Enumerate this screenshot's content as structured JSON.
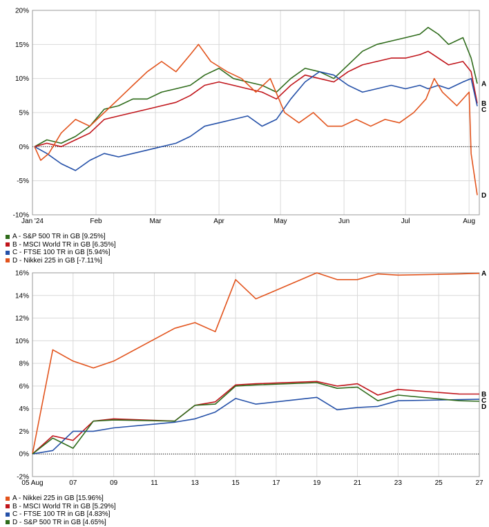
{
  "chart_data": [
    {
      "type": "line",
      "y_unit": "%",
      "ylim": [
        -10,
        20
      ],
      "y_ticks": [
        -10,
        -5,
        0,
        5,
        10,
        15,
        20
      ],
      "y_tick_labels": [
        "-10%",
        "-5%",
        "0%",
        "5%",
        "10%",
        "15%",
        "20%"
      ],
      "x_ticks": [
        "Jan '24",
        "Feb",
        "Mar",
        "Apr",
        "May",
        "Jun",
        "Jul",
        "Aug"
      ],
      "x_tick_positions": [
        "2024-01-01",
        "2024-02-01",
        "2024-03-01",
        "2024-04-01",
        "2024-05-01",
        "2024-06-01",
        "2024-07-01",
        "2024-08-01"
      ],
      "x_range": [
        "2024-01-01",
        "2024-08-06"
      ],
      "grid": true,
      "legend_position": "bottom-left",
      "series": [
        {
          "name": "A - S&P 500 TR in GB [9.25%]",
          "end_label": "A",
          "color": "#2e6b1a",
          "x": [
            "2024-01-02",
            "2024-01-08",
            "2024-01-15",
            "2024-01-22",
            "2024-01-29",
            "2024-02-05",
            "2024-02-12",
            "2024-02-19",
            "2024-02-26",
            "2024-03-04",
            "2024-03-11",
            "2024-03-18",
            "2024-03-25",
            "2024-04-01",
            "2024-04-08",
            "2024-04-15",
            "2024-04-22",
            "2024-04-29",
            "2024-05-06",
            "2024-05-13",
            "2024-05-20",
            "2024-05-27",
            "2024-06-03",
            "2024-06-10",
            "2024-06-17",
            "2024-06-24",
            "2024-07-01",
            "2024-07-08",
            "2024-07-12",
            "2024-07-17",
            "2024-07-22",
            "2024-07-29",
            "2024-08-02",
            "2024-08-05"
          ],
          "y": [
            0,
            1,
            0.5,
            1.5,
            3,
            5.5,
            6,
            7,
            7,
            8,
            8.5,
            9,
            10.5,
            11.5,
            10,
            9.5,
            9,
            8,
            10,
            11.5,
            11,
            10,
            12,
            14,
            15,
            15.5,
            16,
            16.5,
            17.5,
            16.5,
            15,
            16,
            13,
            9.25
          ]
        },
        {
          "name": "B - MSCI World TR in GB [6.35%]",
          "end_label": "B",
          "color": "#c0141a",
          "x": [
            "2024-01-02",
            "2024-01-08",
            "2024-01-15",
            "2024-01-22",
            "2024-01-29",
            "2024-02-05",
            "2024-02-12",
            "2024-02-19",
            "2024-02-26",
            "2024-03-04",
            "2024-03-11",
            "2024-03-18",
            "2024-03-25",
            "2024-04-01",
            "2024-04-08",
            "2024-04-15",
            "2024-04-22",
            "2024-04-29",
            "2024-05-06",
            "2024-05-13",
            "2024-05-20",
            "2024-05-27",
            "2024-06-03",
            "2024-06-10",
            "2024-06-17",
            "2024-06-24",
            "2024-07-01",
            "2024-07-08",
            "2024-07-12",
            "2024-07-17",
            "2024-07-22",
            "2024-07-29",
            "2024-08-02",
            "2024-08-05"
          ],
          "y": [
            0,
            0.5,
            0,
            1,
            2,
            4,
            4.5,
            5,
            5.5,
            6,
            6.5,
            7.5,
            9,
            9.5,
            9,
            8.5,
            8,
            7,
            9,
            10.5,
            10,
            9.5,
            11,
            12,
            12.5,
            13,
            13,
            13.5,
            14,
            13,
            12,
            12.5,
            11,
            6.35
          ]
        },
        {
          "name": "C - FTSE 100 TR in GB [5.94%]",
          "end_label": "C",
          "color": "#2450a8",
          "x": [
            "2024-01-02",
            "2024-01-08",
            "2024-01-15",
            "2024-01-22",
            "2024-01-29",
            "2024-02-05",
            "2024-02-12",
            "2024-02-19",
            "2024-02-26",
            "2024-03-04",
            "2024-03-11",
            "2024-03-18",
            "2024-03-25",
            "2024-04-01",
            "2024-04-08",
            "2024-04-15",
            "2024-04-22",
            "2024-04-29",
            "2024-05-06",
            "2024-05-13",
            "2024-05-20",
            "2024-05-27",
            "2024-06-03",
            "2024-06-10",
            "2024-06-17",
            "2024-06-24",
            "2024-07-01",
            "2024-07-08",
            "2024-07-12",
            "2024-07-17",
            "2024-07-22",
            "2024-07-29",
            "2024-08-02",
            "2024-08-05"
          ],
          "y": [
            0,
            -1,
            -2.5,
            -3.5,
            -2,
            -1,
            -1.5,
            -1,
            -0.5,
            0,
            0.5,
            1.5,
            3,
            3.5,
            4,
            4.5,
            3,
            4,
            7,
            9.5,
            11,
            10.5,
            9,
            8,
            8.5,
            9,
            8.5,
            9,
            8.5,
            9,
            8.5,
            9.5,
            10,
            5.94
          ]
        },
        {
          "name": "D - Nikkei 225 in GB [-7.11%]",
          "end_label": "D",
          "color": "#e2531c",
          "x": [
            "2024-01-02",
            "2024-01-05",
            "2024-01-09",
            "2024-01-15",
            "2024-01-22",
            "2024-01-29",
            "2024-02-05",
            "2024-02-12",
            "2024-02-19",
            "2024-02-26",
            "2024-03-04",
            "2024-03-11",
            "2024-03-18",
            "2024-03-22",
            "2024-03-28",
            "2024-04-05",
            "2024-04-12",
            "2024-04-19",
            "2024-04-26",
            "2024-05-03",
            "2024-05-10",
            "2024-05-17",
            "2024-05-24",
            "2024-05-31",
            "2024-06-07",
            "2024-06-14",
            "2024-06-21",
            "2024-06-28",
            "2024-07-05",
            "2024-07-11",
            "2024-07-15",
            "2024-07-19",
            "2024-07-26",
            "2024-08-01",
            "2024-08-02",
            "2024-08-05"
          ],
          "y": [
            0,
            -2,
            -1,
            2,
            4,
            3,
            5,
            7,
            9,
            11,
            12.5,
            11,
            13.5,
            15,
            12.5,
            11,
            10,
            8,
            10,
            5,
            3.5,
            5,
            3,
            3,
            4,
            3,
            4,
            3.5,
            5,
            7,
            10,
            8,
            6,
            8,
            -1,
            -7.11
          ]
        }
      ]
    },
    {
      "type": "line",
      "y_unit": "%",
      "ylim": [
        -2,
        16
      ],
      "y_ticks": [
        -2,
        0,
        2,
        4,
        6,
        8,
        10,
        12,
        14,
        16
      ],
      "y_tick_labels": [
        "-2%",
        "0%",
        "2%",
        "4%",
        "6%",
        "8%",
        "10%",
        "12%",
        "14%",
        "16%"
      ],
      "x_ticks": [
        "05 Aug",
        "07",
        "09",
        "11",
        "13",
        "15",
        "17",
        "19",
        "21",
        "23",
        "25",
        "27"
      ],
      "x_tick_positions": [
        "2024-08-05",
        "2024-08-07",
        "2024-08-09",
        "2024-08-11",
        "2024-08-13",
        "2024-08-15",
        "2024-08-17",
        "2024-08-19",
        "2024-08-21",
        "2024-08-23",
        "2024-08-25",
        "2024-08-27"
      ],
      "x_range": [
        "2024-08-05",
        "2024-08-27"
      ],
      "grid": true,
      "legend_position": "bottom-left",
      "series": [
        {
          "name": "A - Nikkei 225 in GB [15.96%]",
          "end_label": "A",
          "color": "#e2531c",
          "x": [
            "2024-08-05",
            "2024-08-06",
            "2024-08-07",
            "2024-08-08",
            "2024-08-09",
            "2024-08-12",
            "2024-08-13",
            "2024-08-14",
            "2024-08-15",
            "2024-08-16",
            "2024-08-19",
            "2024-08-20",
            "2024-08-21",
            "2024-08-22",
            "2024-08-23",
            "2024-08-26",
            "2024-08-27"
          ],
          "y": [
            0,
            9.2,
            8.2,
            7.6,
            8.2,
            11.1,
            11.6,
            10.8,
            15.4,
            13.7,
            16.0,
            15.4,
            15.4,
            15.9,
            15.8,
            15.9,
            15.96
          ]
        },
        {
          "name": "B - MSCI World TR in GB [5.29%]",
          "end_label": "B",
          "color": "#c0141a",
          "x": [
            "2024-08-05",
            "2024-08-06",
            "2024-08-07",
            "2024-08-08",
            "2024-08-09",
            "2024-08-12",
            "2024-08-13",
            "2024-08-14",
            "2024-08-15",
            "2024-08-16",
            "2024-08-19",
            "2024-08-20",
            "2024-08-21",
            "2024-08-22",
            "2024-08-23",
            "2024-08-26",
            "2024-08-27"
          ],
          "y": [
            0,
            1.6,
            1.2,
            2.9,
            3.1,
            2.9,
            4.3,
            4.6,
            6.1,
            6.2,
            6.4,
            6.0,
            6.2,
            5.2,
            5.7,
            5.3,
            5.29
          ]
        },
        {
          "name": "C - FTSE 100 TR in GB [4.83%]",
          "end_label": "C",
          "color": "#2450a8",
          "x": [
            "2024-08-05",
            "2024-08-06",
            "2024-08-07",
            "2024-08-08",
            "2024-08-09",
            "2024-08-12",
            "2024-08-13",
            "2024-08-14",
            "2024-08-15",
            "2024-08-16",
            "2024-08-19",
            "2024-08-20",
            "2024-08-21",
            "2024-08-22",
            "2024-08-23",
            "2024-08-26",
            "2024-08-27"
          ],
          "y": [
            0,
            0.3,
            2.0,
            2.0,
            2.3,
            2.8,
            3.1,
            3.7,
            4.9,
            4.4,
            5.0,
            3.9,
            4.1,
            4.2,
            4.7,
            4.8,
            4.83
          ]
        },
        {
          "name": "D - S&P 500 TR in GB [4.65%]",
          "end_label": "D",
          "color": "#2e6b1a",
          "x": [
            "2024-08-05",
            "2024-08-06",
            "2024-08-07",
            "2024-08-08",
            "2024-08-09",
            "2024-08-12",
            "2024-08-13",
            "2024-08-14",
            "2024-08-15",
            "2024-08-16",
            "2024-08-19",
            "2024-08-20",
            "2024-08-21",
            "2024-08-22",
            "2024-08-23",
            "2024-08-26",
            "2024-08-27"
          ],
          "y": [
            0,
            1.4,
            0.5,
            2.9,
            3.0,
            2.9,
            4.3,
            4.4,
            6.0,
            6.1,
            6.3,
            5.8,
            5.9,
            4.7,
            5.2,
            4.7,
            4.65
          ]
        }
      ]
    }
  ]
}
